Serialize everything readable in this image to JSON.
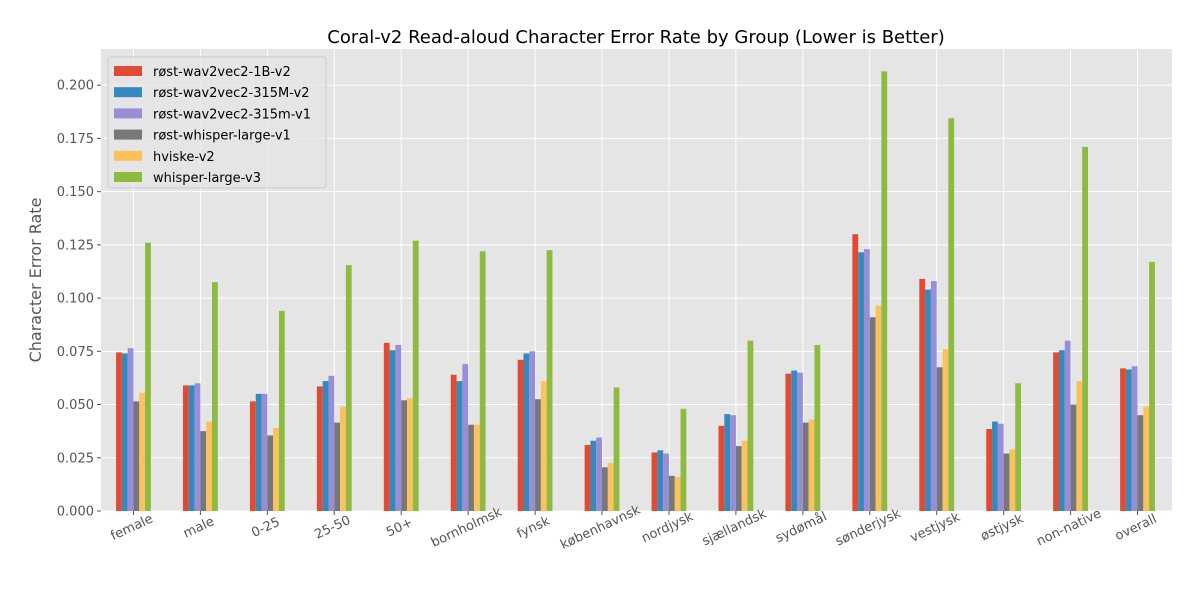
{
  "chart_data": {
    "type": "bar",
    "title": "Coral-v2 Read-aloud Character Error Rate by Group (Lower is Better)",
    "xlabel": "",
    "ylabel": "Character Error Rate",
    "ylim": [
      0,
      0.217
    ],
    "yticks": [
      "0.000",
      "0.025",
      "0.050",
      "0.075",
      "0.100",
      "0.125",
      "0.150",
      "0.175",
      "0.200"
    ],
    "grid": true,
    "legend_position": "top-left",
    "categories": [
      "female",
      "male",
      "0-25",
      "25-50",
      "50+",
      "bornholmsk",
      "fynsk",
      "københavnsk",
      "nordjysk",
      "sjællandsk",
      "sydømål",
      "sønderjysk",
      "vestjysk",
      "østjysk",
      "non-native",
      "overall"
    ],
    "series": [
      {
        "name": "røst-wav2vec2-1B-v2",
        "color": "#E24A33",
        "values": [
          0.0745,
          0.059,
          0.0515,
          0.0585,
          0.079,
          0.064,
          0.071,
          0.031,
          0.0275,
          0.04,
          0.0645,
          0.13,
          0.109,
          0.0385,
          0.0745,
          0.067
        ]
      },
      {
        "name": "røst-wav2vec2-315M-v2",
        "color": "#348ABD",
        "values": [
          0.074,
          0.059,
          0.055,
          0.061,
          0.0755,
          0.061,
          0.074,
          0.033,
          0.0285,
          0.0455,
          0.066,
          0.1215,
          0.104,
          0.042,
          0.0755,
          0.0665
        ]
      },
      {
        "name": "røst-wav2vec2-315m-v1",
        "color": "#988ED5",
        "values": [
          0.0765,
          0.06,
          0.055,
          0.0635,
          0.078,
          0.069,
          0.075,
          0.0345,
          0.027,
          0.045,
          0.065,
          0.123,
          0.108,
          0.041,
          0.08,
          0.068
        ]
      },
      {
        "name": "røst-whisper-large-v1",
        "color": "#777777",
        "values": [
          0.0515,
          0.0375,
          0.0355,
          0.0415,
          0.052,
          0.0405,
          0.0525,
          0.0205,
          0.0165,
          0.0305,
          0.0415,
          0.091,
          0.0675,
          0.027,
          0.05,
          0.045
        ]
      },
      {
        "name": "hviske-v2",
        "color": "#FBC15E",
        "values": [
          0.0555,
          0.042,
          0.039,
          0.049,
          0.053,
          0.0405,
          0.061,
          0.0225,
          0.016,
          0.033,
          0.043,
          0.0965,
          0.076,
          0.029,
          0.061,
          0.049
        ]
      },
      {
        "name": "whisper-large-v3",
        "color": "#8EBA42",
        "values": [
          0.126,
          0.1075,
          0.094,
          0.1155,
          0.127,
          0.122,
          0.1225,
          0.058,
          0.048,
          0.08,
          0.078,
          0.2065,
          0.1845,
          0.06,
          0.171,
          0.117
        ]
      }
    ]
  }
}
